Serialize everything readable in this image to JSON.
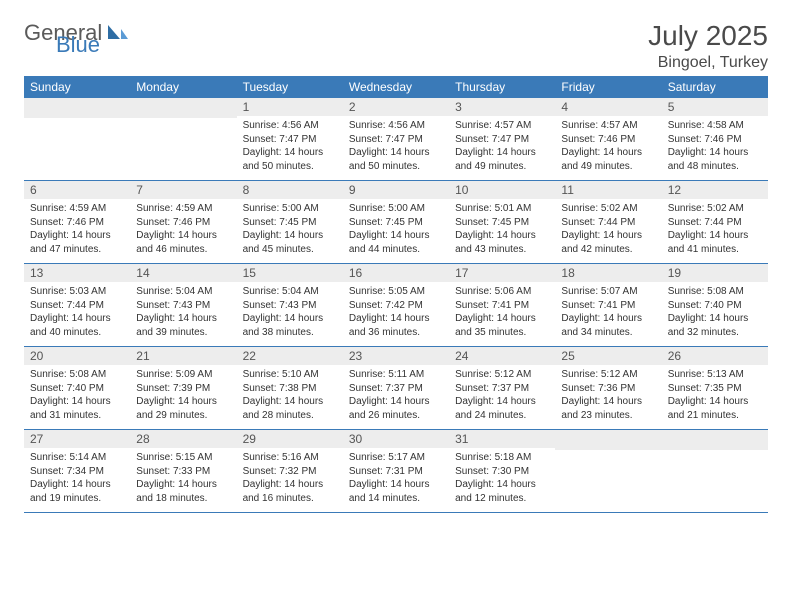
{
  "brand": {
    "part1": "General",
    "part2": "Blue"
  },
  "title": "July 2025",
  "location": "Bingoel, Turkey",
  "colors": {
    "header_bg": "#3a7ab8",
    "header_text": "#ffffff",
    "daynum_bg": "#ededed",
    "border": "#3a7ab8"
  },
  "day_headers": [
    "Sunday",
    "Monday",
    "Tuesday",
    "Wednesday",
    "Thursday",
    "Friday",
    "Saturday"
  ],
  "weeks": [
    [
      {
        "num": "",
        "lines": [
          "",
          "",
          "",
          ""
        ]
      },
      {
        "num": "",
        "lines": [
          "",
          "",
          "",
          ""
        ]
      },
      {
        "num": "1",
        "lines": [
          "Sunrise: 4:56 AM",
          "Sunset: 7:47 PM",
          "Daylight: 14 hours",
          "and 50 minutes."
        ]
      },
      {
        "num": "2",
        "lines": [
          "Sunrise: 4:56 AM",
          "Sunset: 7:47 PM",
          "Daylight: 14 hours",
          "and 50 minutes."
        ]
      },
      {
        "num": "3",
        "lines": [
          "Sunrise: 4:57 AM",
          "Sunset: 7:47 PM",
          "Daylight: 14 hours",
          "and 49 minutes."
        ]
      },
      {
        "num": "4",
        "lines": [
          "Sunrise: 4:57 AM",
          "Sunset: 7:46 PM",
          "Daylight: 14 hours",
          "and 49 minutes."
        ]
      },
      {
        "num": "5",
        "lines": [
          "Sunrise: 4:58 AM",
          "Sunset: 7:46 PM",
          "Daylight: 14 hours",
          "and 48 minutes."
        ]
      }
    ],
    [
      {
        "num": "6",
        "lines": [
          "Sunrise: 4:59 AM",
          "Sunset: 7:46 PM",
          "Daylight: 14 hours",
          "and 47 minutes."
        ]
      },
      {
        "num": "7",
        "lines": [
          "Sunrise: 4:59 AM",
          "Sunset: 7:46 PM",
          "Daylight: 14 hours",
          "and 46 minutes."
        ]
      },
      {
        "num": "8",
        "lines": [
          "Sunrise: 5:00 AM",
          "Sunset: 7:45 PM",
          "Daylight: 14 hours",
          "and 45 minutes."
        ]
      },
      {
        "num": "9",
        "lines": [
          "Sunrise: 5:00 AM",
          "Sunset: 7:45 PM",
          "Daylight: 14 hours",
          "and 44 minutes."
        ]
      },
      {
        "num": "10",
        "lines": [
          "Sunrise: 5:01 AM",
          "Sunset: 7:45 PM",
          "Daylight: 14 hours",
          "and 43 minutes."
        ]
      },
      {
        "num": "11",
        "lines": [
          "Sunrise: 5:02 AM",
          "Sunset: 7:44 PM",
          "Daylight: 14 hours",
          "and 42 minutes."
        ]
      },
      {
        "num": "12",
        "lines": [
          "Sunrise: 5:02 AM",
          "Sunset: 7:44 PM",
          "Daylight: 14 hours",
          "and 41 minutes."
        ]
      }
    ],
    [
      {
        "num": "13",
        "lines": [
          "Sunrise: 5:03 AM",
          "Sunset: 7:44 PM",
          "Daylight: 14 hours",
          "and 40 minutes."
        ]
      },
      {
        "num": "14",
        "lines": [
          "Sunrise: 5:04 AM",
          "Sunset: 7:43 PM",
          "Daylight: 14 hours",
          "and 39 minutes."
        ]
      },
      {
        "num": "15",
        "lines": [
          "Sunrise: 5:04 AM",
          "Sunset: 7:43 PM",
          "Daylight: 14 hours",
          "and 38 minutes."
        ]
      },
      {
        "num": "16",
        "lines": [
          "Sunrise: 5:05 AM",
          "Sunset: 7:42 PM",
          "Daylight: 14 hours",
          "and 36 minutes."
        ]
      },
      {
        "num": "17",
        "lines": [
          "Sunrise: 5:06 AM",
          "Sunset: 7:41 PM",
          "Daylight: 14 hours",
          "and 35 minutes."
        ]
      },
      {
        "num": "18",
        "lines": [
          "Sunrise: 5:07 AM",
          "Sunset: 7:41 PM",
          "Daylight: 14 hours",
          "and 34 minutes."
        ]
      },
      {
        "num": "19",
        "lines": [
          "Sunrise: 5:08 AM",
          "Sunset: 7:40 PM",
          "Daylight: 14 hours",
          "and 32 minutes."
        ]
      }
    ],
    [
      {
        "num": "20",
        "lines": [
          "Sunrise: 5:08 AM",
          "Sunset: 7:40 PM",
          "Daylight: 14 hours",
          "and 31 minutes."
        ]
      },
      {
        "num": "21",
        "lines": [
          "Sunrise: 5:09 AM",
          "Sunset: 7:39 PM",
          "Daylight: 14 hours",
          "and 29 minutes."
        ]
      },
      {
        "num": "22",
        "lines": [
          "Sunrise: 5:10 AM",
          "Sunset: 7:38 PM",
          "Daylight: 14 hours",
          "and 28 minutes."
        ]
      },
      {
        "num": "23",
        "lines": [
          "Sunrise: 5:11 AM",
          "Sunset: 7:37 PM",
          "Daylight: 14 hours",
          "and 26 minutes."
        ]
      },
      {
        "num": "24",
        "lines": [
          "Sunrise: 5:12 AM",
          "Sunset: 7:37 PM",
          "Daylight: 14 hours",
          "and 24 minutes."
        ]
      },
      {
        "num": "25",
        "lines": [
          "Sunrise: 5:12 AM",
          "Sunset: 7:36 PM",
          "Daylight: 14 hours",
          "and 23 minutes."
        ]
      },
      {
        "num": "26",
        "lines": [
          "Sunrise: 5:13 AM",
          "Sunset: 7:35 PM",
          "Daylight: 14 hours",
          "and 21 minutes."
        ]
      }
    ],
    [
      {
        "num": "27",
        "lines": [
          "Sunrise: 5:14 AM",
          "Sunset: 7:34 PM",
          "Daylight: 14 hours",
          "and 19 minutes."
        ]
      },
      {
        "num": "28",
        "lines": [
          "Sunrise: 5:15 AM",
          "Sunset: 7:33 PM",
          "Daylight: 14 hours",
          "and 18 minutes."
        ]
      },
      {
        "num": "29",
        "lines": [
          "Sunrise: 5:16 AM",
          "Sunset: 7:32 PM",
          "Daylight: 14 hours",
          "and 16 minutes."
        ]
      },
      {
        "num": "30",
        "lines": [
          "Sunrise: 5:17 AM",
          "Sunset: 7:31 PM",
          "Daylight: 14 hours",
          "and 14 minutes."
        ]
      },
      {
        "num": "31",
        "lines": [
          "Sunrise: 5:18 AM",
          "Sunset: 7:30 PM",
          "Daylight: 14 hours",
          "and 12 minutes."
        ]
      },
      {
        "num": "",
        "lines": [
          "",
          "",
          "",
          ""
        ]
      },
      {
        "num": "",
        "lines": [
          "",
          "",
          "",
          ""
        ]
      }
    ]
  ]
}
